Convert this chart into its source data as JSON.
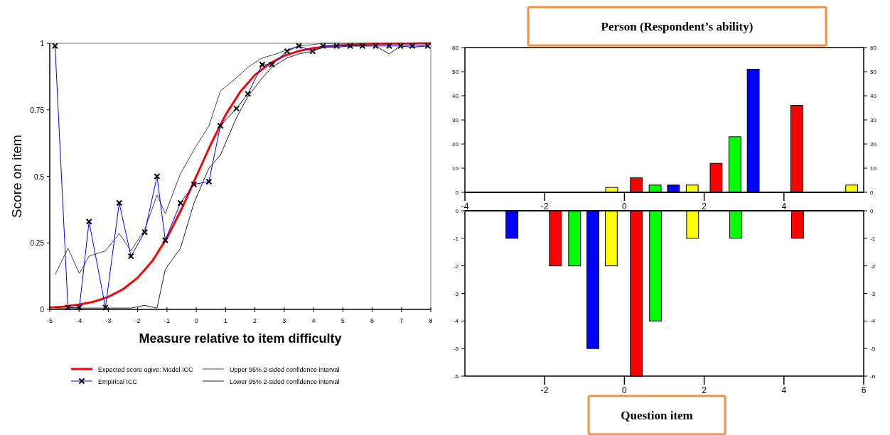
{
  "chart_data": [
    {
      "type": "line",
      "xlabel": "Measure relative to item difficulty",
      "ylabel": "Score on item",
      "xlim": [
        -5,
        8
      ],
      "xticks": [
        -5,
        -4,
        -3,
        -2,
        -1,
        0,
        1,
        2,
        3,
        4,
        5,
        6,
        7,
        8
      ],
      "ylim": [
        0,
        1
      ],
      "yticks": [
        0,
        0.25,
        0.5,
        0.75,
        1
      ],
      "legend": "bottom",
      "grid": false,
      "series": [
        {
          "name": "Expected score ogive: Model ICC",
          "color": "#ff0000",
          "marker": "none",
          "x": [
            -5,
            -4.5,
            -4,
            -3.5,
            -3,
            -2.5,
            -2,
            -1.5,
            -1,
            -0.5,
            0,
            0.5,
            1,
            1.5,
            2,
            2.5,
            3,
            3.5,
            4,
            4.5,
            5,
            6,
            7,
            8
          ],
          "values": [
            0.007,
            0.011,
            0.018,
            0.029,
            0.047,
            0.076,
            0.119,
            0.182,
            0.269,
            0.378,
            0.5,
            0.622,
            0.731,
            0.818,
            0.881,
            0.924,
            0.953,
            0.971,
            0.982,
            0.989,
            0.993,
            0.998,
            0.999,
            1.0
          ]
        },
        {
          "name": "Upper 95% 2-sided confidence interval",
          "color": "#2f4f4f",
          "marker": "none",
          "x": [
            -4.82,
            -4.38,
            -3.99,
            -3.66,
            -3.1,
            -2.63,
            -2.23,
            -1.76,
            -1.34,
            -1.06,
            -0.54,
            -0.08,
            0.43,
            0.82,
            1.37,
            1.76,
            2.25,
            2.58,
            3.1,
            3.5,
            3.97,
            4.32,
            4.79,
            5.25,
            5.67,
            6.12,
            6.58,
            6.97,
            7.37,
            7.9
          ],
          "values": [
            0.13,
            0.23,
            0.135,
            0.2,
            0.22,
            0.285,
            0.22,
            0.3,
            0.43,
            0.36,
            0.51,
            0.6,
            0.69,
            0.82,
            0.87,
            0.91,
            0.945,
            0.955,
            0.975,
            0.99,
            0.995,
            1,
            1,
            1,
            1,
            null,
            null,
            null,
            1,
            1
          ]
        },
        {
          "name": "Empirical ICC",
          "color": "#0000ff",
          "marker": "cross",
          "x": [
            -4.82,
            -4.38,
            -3.99,
            -3.66,
            -3.1,
            -2.63,
            -2.23,
            -1.76,
            -1.34,
            -1.06,
            -0.54,
            -0.08,
            0.43,
            0.82,
            1.37,
            1.76,
            2.25,
            2.58,
            3.1,
            3.5,
            3.97,
            4.32,
            4.79,
            5.25,
            5.67,
            6.12,
            6.58,
            6.97,
            7.37,
            7.9
          ],
          "values": [
            0.99,
            0.007,
            0.007,
            0.33,
            0.007,
            0.4,
            0.2,
            0.29,
            0.5,
            0.26,
            0.4,
            0.47,
            0.48,
            0.69,
            0.755,
            0.81,
            0.92,
            0.92,
            0.97,
            0.99,
            0.97,
            0.99,
            0.99,
            0.99,
            0.99,
            0.99,
            0.99,
            0.99,
            0.99,
            0.99
          ]
        },
        {
          "name": "Lower 95% 2-sided confidence interval",
          "color": "#222222",
          "marker": "none",
          "x": [
            -4.82,
            -4.38,
            -3.99,
            -3.66,
            -3.1,
            -2.63,
            -2.23,
            -1.76,
            -1.34,
            -1.06,
            -0.54,
            -0.08,
            0.43,
            0.82,
            1.37,
            1.76,
            2.25,
            2.58,
            3.1,
            3.5,
            3.97,
            4.32,
            4.79,
            5.25,
            5.67,
            6.12,
            6.58,
            6.97,
            7.37,
            7.9
          ],
          "values": [
            0.005,
            0.005,
            0.005,
            0.005,
            0.005,
            0.005,
            0.005,
            0.015,
            0.005,
            0.15,
            0.23,
            0.4,
            0.53,
            0.58,
            0.72,
            0.8,
            0.87,
            0.91,
            0.945,
            0.96,
            0.97,
            0.985,
            0.985,
            0.99,
            0.99,
            0.99,
            0.96,
            0.99,
            0.985,
            0.99
          ]
        }
      ]
    },
    {
      "type": "bar",
      "title": "Person (Respondent’s ability)",
      "x": [
        -0.32,
        0.3,
        0.77,
        1.23,
        1.7,
        2.3,
        2.77,
        3.23,
        4.32,
        5.7
      ],
      "values": [
        2,
        6,
        3,
        3,
        3,
        12,
        23,
        51,
        36,
        3
      ],
      "colors": [
        "#ffff00",
        "#ff0000",
        "#00ff00",
        "#0000ff",
        "#ffff00",
        "#ff0000",
        "#00ff00",
        "#0000ff",
        "#ff0000",
        "#ffff00"
      ],
      "xlim": [
        -4,
        6
      ],
      "xticks": [
        -4,
        -2,
        0,
        2,
        4
      ],
      "ylim": [
        0,
        60
      ],
      "yticks": [
        0,
        10,
        20,
        30,
        40,
        50,
        60
      ],
      "y2lim": [
        0,
        60
      ],
      "y2ticks": [
        0,
        10,
        20,
        30,
        40,
        50,
        60
      ]
    },
    {
      "type": "bar",
      "title": "Question item",
      "x": [
        -2.82,
        -1.73,
        -1.25,
        -0.79,
        -0.33,
        0.3,
        0.78,
        1.71,
        2.79,
        4.34
      ],
      "values": [
        -1,
        -2,
        -2,
        -5,
        -2,
        -6,
        -4,
        -1,
        -1,
        -1
      ],
      "colors": [
        "#0000ff",
        "#ff0000",
        "#00ff00",
        "#0000ff",
        "#ffff00",
        "#ff0000",
        "#00ff00",
        "#ffff00",
        "#00ff00",
        "#ff0000"
      ],
      "xlim": [
        -4,
        6
      ],
      "xticks": [
        -2,
        0,
        2,
        4,
        6
      ],
      "ylim": [
        -6,
        0
      ],
      "yticks": [
        -6,
        -5,
        -4,
        -3,
        -2,
        -1,
        0
      ],
      "y2lim": [
        -6,
        0
      ],
      "y2ticks": [
        -6,
        -5,
        -4,
        -3,
        -2,
        -1,
        0
      ]
    }
  ]
}
